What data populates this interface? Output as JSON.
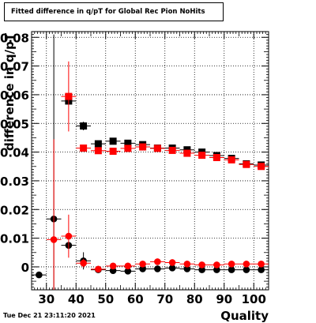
{
  "title": "Fitted difference in q/pT for Global Rec Pion NoHits",
  "timestamp": "Tue Dec 21 23:11:20 2021",
  "chart_data": {
    "type": "scatter",
    "title": "Fitted difference in q/pT for Global Rec Pion NoHits",
    "xlabel": "Quality",
    "ylabel": "difference in q/pT",
    "xlim": [
      25,
      105
    ],
    "ylim": [
      -0.008,
      0.082
    ],
    "xticks": [
      "30",
      "40",
      "50",
      "60",
      "70",
      "80",
      "90",
      "100"
    ],
    "yticks": [
      "0",
      "0.01",
      "0.02",
      "0.03",
      "0.04",
      "0.05",
      "0.06",
      "0.07",
      "0.08"
    ],
    "grid": true,
    "series": [
      {
        "marker": "square",
        "color": "#000000",
        "points": [
          {
            "x": 37.5,
            "y": 0.0578,
            "ex": 2.5,
            "ey": 0.0
          },
          {
            "x": 42.5,
            "y": 0.0491,
            "ex": 2.5,
            "ey": 0.0015
          },
          {
            "x": 47.5,
            "y": 0.0429,
            "ex": 2.5,
            "ey": 0.0005
          },
          {
            "x": 52.5,
            "y": 0.0438,
            "ex": 2.5,
            "ey": 0.0005
          },
          {
            "x": 57.5,
            "y": 0.0431,
            "ex": 2.5,
            "ey": 0.0003
          },
          {
            "x": 62.5,
            "y": 0.0426,
            "ex": 2.5,
            "ey": 0.0003
          },
          {
            "x": 67.5,
            "y": 0.0414,
            "ex": 2.5,
            "ey": 0.0003
          },
          {
            "x": 72.5,
            "y": 0.0414,
            "ex": 2.5,
            "ey": 0.0003
          },
          {
            "x": 77.5,
            "y": 0.0408,
            "ex": 2.5,
            "ey": 0.0003
          },
          {
            "x": 82.5,
            "y": 0.04,
            "ex": 2.5,
            "ey": 0.0003
          },
          {
            "x": 87.5,
            "y": 0.0388,
            "ex": 2.5,
            "ey": 0.0003
          },
          {
            "x": 92.5,
            "y": 0.0378,
            "ex": 2.5,
            "ey": 0.0003
          },
          {
            "x": 97.5,
            "y": 0.0359,
            "ex": 2.5,
            "ey": 0.0003
          },
          {
            "x": 102.5,
            "y": 0.0355,
            "ex": 2.5,
            "ey": 0.0003
          }
        ]
      },
      {
        "marker": "square",
        "color": "#ff0000",
        "points": [
          {
            "x": 37.5,
            "y": 0.0594,
            "ex": 2.5,
            "ey": 0.0122
          },
          {
            "x": 42.5,
            "y": 0.0414,
            "ex": 2.5,
            "ey": 0.0006
          },
          {
            "x": 47.5,
            "y": 0.0405,
            "ex": 2.5,
            "ey": 0.0004
          },
          {
            "x": 52.5,
            "y": 0.0403,
            "ex": 2.5,
            "ey": 0.0004
          },
          {
            "x": 57.5,
            "y": 0.0413,
            "ex": 2.5,
            "ey": 0.0003
          },
          {
            "x": 62.5,
            "y": 0.0418,
            "ex": 2.5,
            "ey": 0.0003
          },
          {
            "x": 67.5,
            "y": 0.0413,
            "ex": 2.5,
            "ey": 0.0003
          },
          {
            "x": 72.5,
            "y": 0.0406,
            "ex": 2.5,
            "ey": 0.0003
          },
          {
            "x": 77.5,
            "y": 0.0396,
            "ex": 2.5,
            "ey": 0.0003
          },
          {
            "x": 82.5,
            "y": 0.0389,
            "ex": 2.5,
            "ey": 0.0003
          },
          {
            "x": 87.5,
            "y": 0.0381,
            "ex": 2.5,
            "ey": 0.0003
          },
          {
            "x": 92.5,
            "y": 0.0373,
            "ex": 2.5,
            "ey": 0.0003
          },
          {
            "x": 97.5,
            "y": 0.0357,
            "ex": 2.5,
            "ey": 0.0003
          },
          {
            "x": 102.5,
            "y": 0.035,
            "ex": 2.5,
            "ey": 0.0003
          }
        ]
      },
      {
        "marker": "circle",
        "color": "#000000",
        "points": [
          {
            "x": 27.5,
            "y": -0.0028,
            "ex": 2.5,
            "ey": 0.0
          },
          {
            "x": 32.5,
            "y": 0.0167,
            "ex": 2.5,
            "ey": 0.0643
          },
          {
            "x": 37.5,
            "y": 0.0075,
            "ex": 2.5,
            "ey": 0.0
          },
          {
            "x": 42.5,
            "y": 0.0021,
            "ex": 2.5,
            "ey": 0.003
          },
          {
            "x": 47.5,
            "y": -0.001,
            "ex": 2.5,
            "ey": 0.0
          },
          {
            "x": 52.5,
            "y": -0.0013,
            "ex": 2.5,
            "ey": 0.0003
          },
          {
            "x": 57.5,
            "y": -0.0015,
            "ex": 2.5,
            "ey": 0.0003
          },
          {
            "x": 62.5,
            "y": -0.0007,
            "ex": 2.5,
            "ey": 0.0002
          },
          {
            "x": 67.5,
            "y": -0.0007,
            "ex": 2.5,
            "ey": 0.0002
          },
          {
            "x": 72.5,
            "y": -0.0004,
            "ex": 2.5,
            "ey": 0.0002
          },
          {
            "x": 77.5,
            "y": -0.0007,
            "ex": 2.5,
            "ey": 0.0002
          },
          {
            "x": 82.5,
            "y": -0.001,
            "ex": 2.5,
            "ey": 0.0002
          },
          {
            "x": 87.5,
            "y": -0.001,
            "ex": 2.5,
            "ey": 0.0002
          },
          {
            "x": 92.5,
            "y": -0.001,
            "ex": 2.5,
            "ey": 0.0002
          },
          {
            "x": 97.5,
            "y": -0.001,
            "ex": 2.5,
            "ey": 0.0002
          },
          {
            "x": 102.5,
            "y": -0.001,
            "ex": 2.5,
            "ey": 0.0002
          }
        ]
      },
      {
        "marker": "circle",
        "color": "#ff0000",
        "points": [
          {
            "x": 32.5,
            "y": 0.0095,
            "ex": 2.5,
            "ey": 0.035
          },
          {
            "x": 37.5,
            "y": 0.0107,
            "ex": 2.5,
            "ey": 0.0075
          },
          {
            "x": 42.5,
            "y": 0.0013,
            "ex": 2.5,
            "ey": 0.0015
          },
          {
            "x": 47.5,
            "y": -0.0008,
            "ex": 2.5,
            "ey": 0.0004
          },
          {
            "x": 52.5,
            "y": 0.0003,
            "ex": 2.5,
            "ey": 0.0003
          },
          {
            "x": 57.5,
            "y": 0.0003,
            "ex": 2.5,
            "ey": 0.0003
          },
          {
            "x": 62.5,
            "y": 0.001,
            "ex": 2.5,
            "ey": 0.0002
          },
          {
            "x": 67.5,
            "y": 0.0018,
            "ex": 2.5,
            "ey": 0.0002
          },
          {
            "x": 72.5,
            "y": 0.0015,
            "ex": 2.5,
            "ey": 0.0002
          },
          {
            "x": 77.5,
            "y": 0.001,
            "ex": 2.5,
            "ey": 0.0002
          },
          {
            "x": 82.5,
            "y": 0.0007,
            "ex": 2.5,
            "ey": 0.0002
          },
          {
            "x": 87.5,
            "y": 0.0007,
            "ex": 2.5,
            "ey": 0.0002
          },
          {
            "x": 92.5,
            "y": 0.001,
            "ex": 2.5,
            "ey": 0.0002
          },
          {
            "x": 97.5,
            "y": 0.001,
            "ex": 2.5,
            "ey": 0.0002
          },
          {
            "x": 102.5,
            "y": 0.001,
            "ex": 2.5,
            "ey": 0.0002
          }
        ]
      }
    ]
  }
}
